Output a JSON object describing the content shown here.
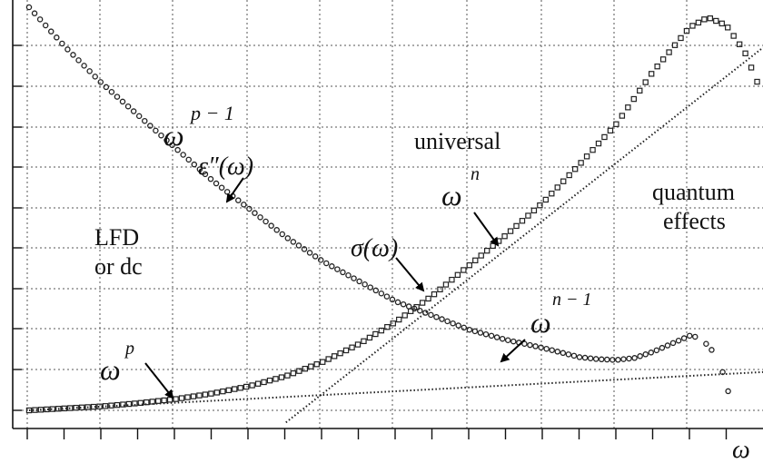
{
  "chart_data": {
    "type": "scatter",
    "title": "",
    "xlabel": "ω",
    "ylabel": "",
    "xlim": [
      0,
      20
    ],
    "ylim": [
      0,
      10
    ],
    "grid": true,
    "legend": "none",
    "series": [
      {
        "name": "ε″(ω)",
        "marker": "circle",
        "x": [
          0,
          1,
          2,
          3,
          4,
          5,
          6,
          7,
          8,
          9,
          10,
          11,
          12,
          13,
          14,
          15,
          15.5,
          16,
          16.5,
          17,
          17.5,
          18,
          18.3,
          18.6,
          18.9,
          19.2
        ],
        "y": [
          10.0,
          9.0,
          8.1,
          7.3,
          6.5,
          5.7,
          5.0,
          4.3,
          3.7,
          3.2,
          2.7,
          2.35,
          2.0,
          1.75,
          1.55,
          1.32,
          1.27,
          1.25,
          1.3,
          1.45,
          1.65,
          1.85,
          1.8,
          1.5,
          0.95,
          0.0
        ]
      },
      {
        "name": "σ(ω)",
        "marker": "square",
        "x": [
          0,
          1,
          2,
          3,
          4,
          5,
          6,
          7,
          8,
          9,
          10,
          11,
          12,
          13,
          14,
          15,
          16,
          17,
          18,
          18.5,
          19,
          19.5,
          20
        ],
        "y": [
          0.0,
          0.05,
          0.1,
          0.18,
          0.28,
          0.42,
          0.6,
          0.85,
          1.2,
          1.65,
          2.2,
          2.85,
          3.6,
          4.35,
          5.15,
          6.1,
          7.1,
          8.4,
          9.5,
          9.75,
          9.55,
          8.9,
          7.8
        ]
      },
      {
        "name": "ωⁿ",
        "style": "dotted-line",
        "x": [
          7,
          20
        ],
        "y": [
          -0.3,
          9.0
        ]
      },
      {
        "name": "ωᵖ",
        "style": "dotted-line",
        "x": [
          0,
          20
        ],
        "y": [
          0.0,
          0.95
        ]
      }
    ]
  },
  "annotations": {
    "omega_p_minus_1_base": "ω",
    "omega_p_minus_1_exp": "p − 1",
    "epsilon": "ε″(ω)",
    "universal": "universal",
    "omega_n_base": "ω",
    "omega_n_exp": "n",
    "quantum_1": "quantum",
    "quantum_2": "effects",
    "lfd_1": "LFD",
    "lfd_2": "or dc",
    "sigma": "σ(ω)",
    "omega_n_minus_1_base": "ω",
    "omega_n_minus_1_exp": "n − 1",
    "omega_p_base": "ω",
    "omega_p_exp": "p",
    "x_axis_label": "ω"
  }
}
